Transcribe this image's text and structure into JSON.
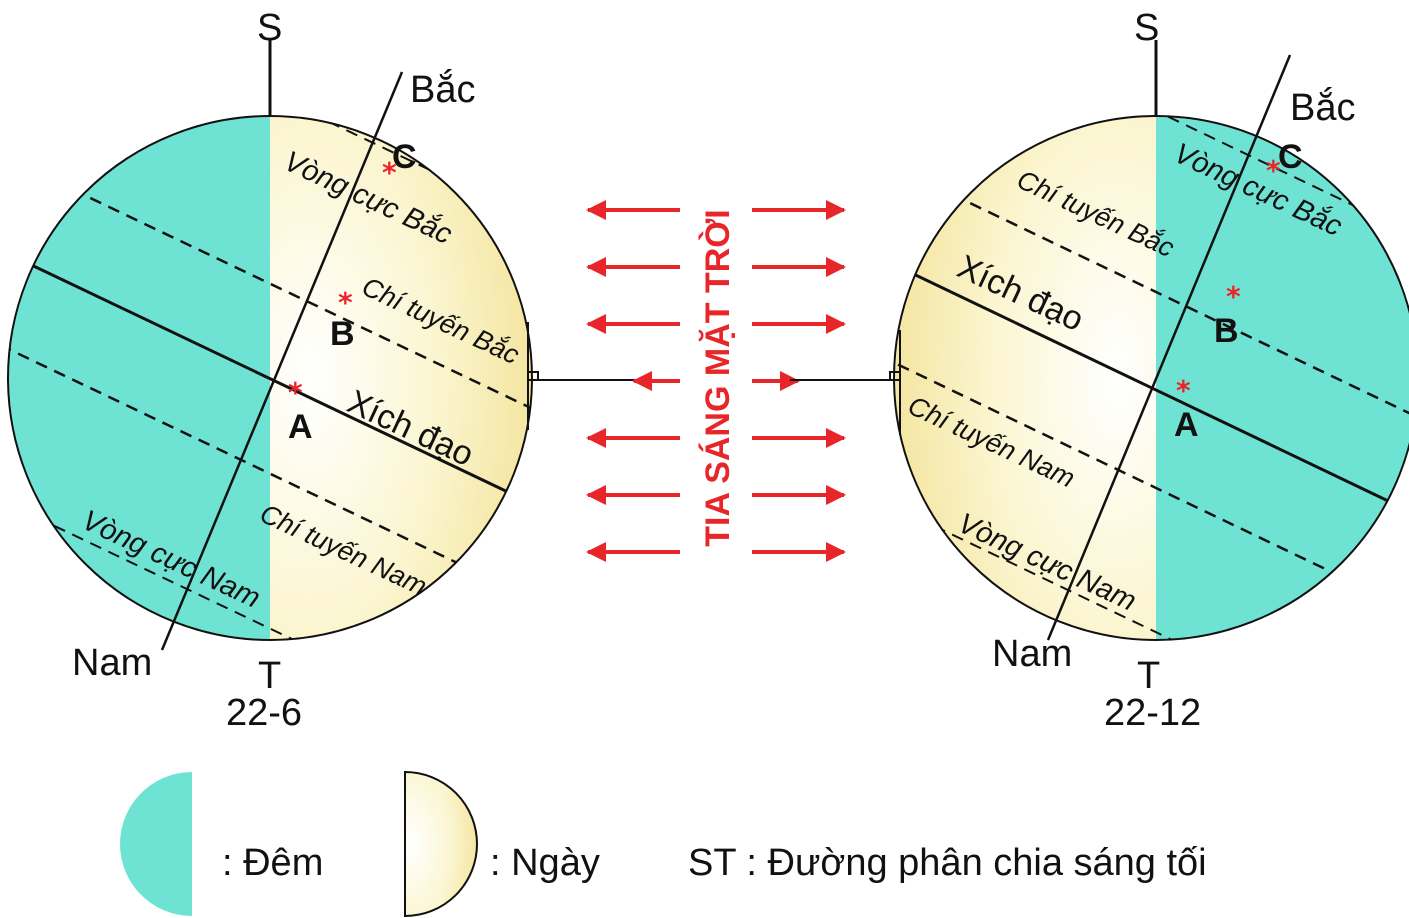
{
  "colors": {
    "night": "#6fe3d3",
    "day_edge": "#f3e39a",
    "day_center": "#ffffff",
    "sun_rays": "#e8262a",
    "line": "#111111",
    "point_marker": "#e8262a"
  },
  "sun_rays_label": "TIA SÁNG MẶT TRỜI",
  "left_globe": {
    "date": "22-6",
    "s_label": "S",
    "t_label": "T",
    "north_label": "Bắc",
    "south_label": "Nam",
    "arctic_circle": "Vòng cực Bắc",
    "tropic_cancer": "Chí tuyến Bắc",
    "equator": "Xích đạo",
    "tropic_capricorn": "Chí tuyến Nam",
    "antarctic_circle": "Vòng cực Nam",
    "point_a": "A",
    "point_b": "B",
    "point_c": "C"
  },
  "right_globe": {
    "date": "22-12",
    "s_label": "S",
    "t_label": "T",
    "north_label": "Bắc",
    "south_label": "Nam",
    "arctic_circle": "Vòng cực Bắc",
    "tropic_cancer": "Chí tuyến Bắc",
    "equator": "Xích đạo",
    "tropic_capricorn": "Chí tuyến Nam",
    "antarctic_circle": "Vòng cực Nam",
    "point_a": "A",
    "point_b": "B",
    "point_c": "C"
  },
  "legend": {
    "night_label": ": Đêm",
    "day_label": ": Ngày",
    "st_label": "ST : Đường phân chia sáng tối"
  }
}
